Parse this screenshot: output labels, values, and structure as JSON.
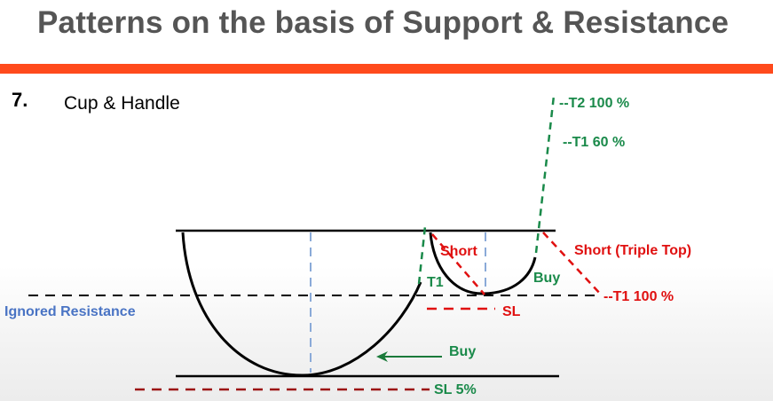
{
  "title": "Patterns on the basis of Support & Resistance",
  "pattern_number": "7.",
  "pattern_name": "Cup & Handle",
  "labels": {
    "t2_target": "--T2   100 %",
    "t1_target_top": "--T1   60 %",
    "short_triple_top": "Short (Triple Top)",
    "t1_right": "--T1   100 %",
    "short": "Short",
    "t1_left": "T1",
    "buy_handle": "Buy",
    "sl_handle": "SL",
    "ignored_resistance": "Ignored Resistance",
    "buy_cup": "Buy",
    "sl_cup": "SL 5%"
  },
  "colors": {
    "accent_bar": "#ff4a1c",
    "title": "#555555",
    "green": "#1a8a4a",
    "red": "#e01010",
    "blue_text": "#4a74c4",
    "blue_dash": "#8aaad8",
    "line": "#000000"
  }
}
